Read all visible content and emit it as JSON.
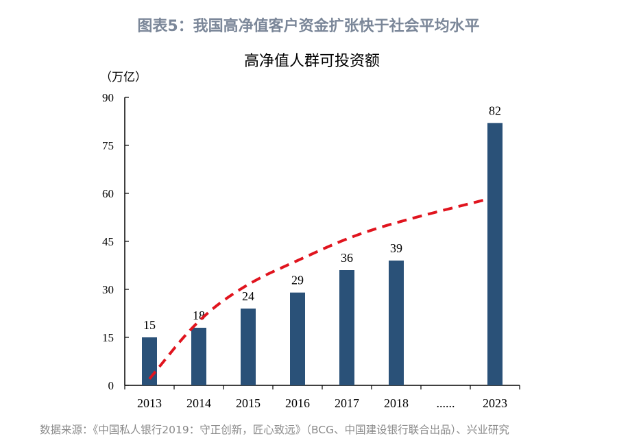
{
  "figure_title": "图表5：我国高净值客户资金扩张快于社会平均水平",
  "source": "数据来源：《中国私人银行2019：守正创新，匠心致远》（BCG、中国建设银行联合出品）、兴业研究",
  "chart_data": {
    "type": "bar",
    "title": "高净值人群可投资额",
    "ylabel": "（万亿）",
    "xlabel": "",
    "ylim": [
      0,
      90
    ],
    "yticks": [
      0,
      15,
      30,
      45,
      60,
      75,
      90
    ],
    "categories": [
      "2013",
      "2014",
      "2015",
      "2016",
      "2017",
      "2018",
      "......",
      "2023"
    ],
    "values": [
      15,
      18,
      24,
      29,
      36,
      39,
      null,
      82
    ],
    "data_labels": [
      "15",
      "18",
      "24",
      "29",
      "36",
      "39",
      "",
      "82"
    ],
    "bar_color": "#2a5178",
    "grid": false,
    "trend_line": {
      "style": "dashed",
      "color": "#e0141e",
      "points": [
        [
          0,
          2
        ],
        [
          1,
          21
        ],
        [
          2,
          32
        ],
        [
          3,
          39
        ],
        [
          4,
          46
        ],
        [
          5,
          51
        ],
        [
          6.8,
          58
        ]
      ]
    }
  }
}
